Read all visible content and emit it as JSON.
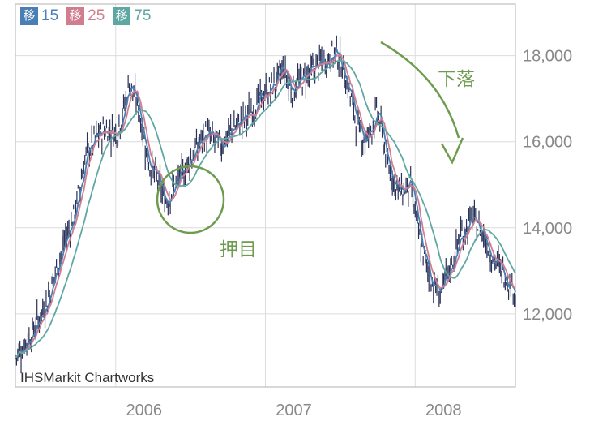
{
  "legend": [
    {
      "badge": "移",
      "period": "15",
      "color": "#4a7eb4"
    },
    {
      "badge": "移",
      "period": "25",
      "color": "#d07e8e"
    },
    {
      "badge": "移",
      "period": "75",
      "color": "#5fa7a3"
    }
  ],
  "source": "IHSMarkit Chartworks",
  "annotations": {
    "pullback": "押目",
    "decline": "下落"
  },
  "colors": {
    "candle": "#2a3158",
    "grid": "#dcdcdc",
    "axis_text": "#888888",
    "annotation": "#6d9c4f"
  },
  "chart_data": {
    "type": "line",
    "x_ticks": [
      "2006",
      "2007",
      "2008"
    ],
    "y_ticks": [
      "12,000",
      "14,000",
      "16,000",
      "18,000"
    ],
    "y_tick_values": [
      12000,
      14000,
      16000,
      18000
    ],
    "ylim": [
      10300,
      19200
    ],
    "x_range": [
      2005.33,
      2008.67
    ],
    "price_anchors": [
      [
        2005.33,
        11000
      ],
      [
        2005.45,
        11600
      ],
      [
        2005.55,
        12400
      ],
      [
        2005.65,
        13600
      ],
      [
        2005.73,
        14400
      ],
      [
        2005.8,
        15700
      ],
      [
        2005.87,
        16100
      ],
      [
        2005.93,
        16300
      ],
      [
        2006.0,
        16200
      ],
      [
        2006.05,
        16700
      ],
      [
        2006.09,
        17400
      ],
      [
        2006.15,
        16800
      ],
      [
        2006.22,
        15500
      ],
      [
        2006.28,
        15100
      ],
      [
        2006.33,
        14600
      ],
      [
        2006.38,
        14900
      ],
      [
        2006.45,
        15300
      ],
      [
        2006.53,
        15800
      ],
      [
        2006.6,
        16200
      ],
      [
        2006.7,
        15900
      ],
      [
        2006.78,
        16300
      ],
      [
        2006.88,
        16600
      ],
      [
        2006.97,
        17000
      ],
      [
        2007.05,
        17300
      ],
      [
        2007.12,
        17700
      ],
      [
        2007.17,
        17200
      ],
      [
        2007.23,
        17400
      ],
      [
        2007.32,
        17700
      ],
      [
        2007.4,
        17900
      ],
      [
        2007.48,
        18100
      ],
      [
        2007.55,
        17300
      ],
      [
        2007.62,
        16300
      ],
      [
        2007.67,
        16000
      ],
      [
        2007.75,
        16700
      ],
      [
        2007.82,
        15400
      ],
      [
        2007.9,
        14800
      ],
      [
        2007.97,
        15000
      ],
      [
        2008.03,
        13700
      ],
      [
        2008.1,
        12800
      ],
      [
        2008.17,
        12500
      ],
      [
        2008.22,
        12900
      ],
      [
        2008.3,
        13800
      ],
      [
        2008.38,
        14200
      ],
      [
        2008.45,
        13900
      ],
      [
        2008.52,
        13300
      ],
      [
        2008.58,
        13000
      ],
      [
        2008.64,
        12700
      ],
      [
        2008.67,
        12500
      ]
    ]
  }
}
